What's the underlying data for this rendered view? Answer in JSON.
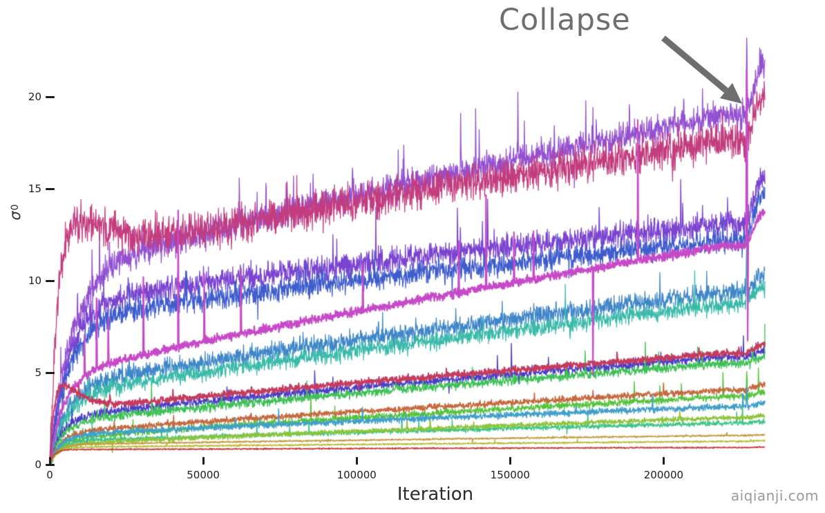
{
  "watermark": "aiqianji.com",
  "annotation": {
    "text": "Collapse",
    "color": "#6e6e6e",
    "arrow_color": "#6e6e6e"
  },
  "axis": {
    "tick_color": "#1c1c1c",
    "label_color": "#2b2b2b"
  },
  "chart_data": {
    "type": "line",
    "title": "",
    "xlabel": "Iteration",
    "ylabel_symbol": "σ",
    "ylabel_sub": "0",
    "xlim": [
      0,
      233000
    ],
    "ylim": [
      0,
      23.5
    ],
    "grid": false,
    "legend": null,
    "x_ticks": {
      "values": [
        0,
        50000,
        100000,
        150000,
        200000
      ],
      "labels": [
        "0",
        "50000",
        "100000",
        "150000",
        "200000"
      ]
    },
    "y_ticks": {
      "values": [
        0,
        5,
        10,
        15,
        20
      ],
      "labels": [
        "0",
        "5",
        "10",
        "15",
        "20"
      ]
    },
    "collapse": {
      "start": 226000,
      "duration": 6500,
      "annotated_at_iteration": 227000
    },
    "series_note": "Each singular-value trace rises from 0, plateaus near 'plateau' by ~iter 20000, grows roughly linearly to 'pre' at iter ~226000, then jumps to 'final' at the collapse.",
    "series": [
      {
        "name": "purple",
        "color": "#9351d2",
        "zorder": 1,
        "tau": 6500,
        "plateau": 10.6,
        "pre": 19.0,
        "final": 21.6,
        "noise": 0.42,
        "spike_prob": 0.02,
        "spike_amp": 4.0,
        "neg_frac": 0.1,
        "collapse_spike": 4.0,
        "lw": 1.3,
        "seed": 11
      },
      {
        "name": "mulberry",
        "color": "#c33d7e",
        "zorder": 4,
        "tau": 2500,
        "plateau": 11.3,
        "pre": 17.6,
        "final": 20.1,
        "noise": 0.55,
        "spike_prob": 0.01,
        "spike_amp": 2.2,
        "neg_frac": 0.45,
        "bump_amp": 2.2,
        "bump_peak": 7000,
        "lw": 1.3,
        "seed": 22
      },
      {
        "name": "blue-violet",
        "color": "#7b44d0",
        "zorder": 2,
        "tau": 6000,
        "plateau": 8.9,
        "pre": 13.1,
        "final": 15.6,
        "noise": 0.38,
        "spike_prob": 0.012,
        "spike_amp": 3.5,
        "neg_frac": 0.15,
        "lw": 1.3,
        "seed": 33
      },
      {
        "name": "royal-blue",
        "color": "#3e5ccc",
        "zorder": 3,
        "tau": 6000,
        "plateau": 8.0,
        "pre": 12.2,
        "final": 14.8,
        "noise": 0.33,
        "spike_prob": 0.01,
        "spike_amp": 2.8,
        "neg_frac": 0.2,
        "collapse_spike": 2.0,
        "lw": 1.3,
        "seed": 44
      },
      {
        "name": "orchid",
        "color": "#c64ac8",
        "zorder": 12,
        "tau": 4500,
        "plateau": 5.1,
        "pre": 11.9,
        "final": 13.7,
        "noise": 0.13,
        "spike_prob": 0.006,
        "spike_amp": 12.0,
        "neg_frac": 0.05,
        "collapse_spike": 11.0,
        "lw": 2.2,
        "seed": 55
      },
      {
        "name": "steel-blue",
        "color": "#3f86c9",
        "zorder": 5,
        "tau": 5000,
        "plateau": 4.4,
        "pre": 9.4,
        "final": 10.3,
        "noise": 0.28,
        "spike_prob": 0.007,
        "spike_amp": 2.6,
        "neg_frac": 0.2,
        "collapse_spike": 2.5,
        "lw": 1.3,
        "seed": 66
      },
      {
        "name": "teal",
        "color": "#3abaa9",
        "zorder": 6,
        "tau": 5000,
        "plateau": 3.9,
        "pre": 8.7,
        "final": 9.7,
        "noise": 0.25,
        "spike_prob": 0.007,
        "spike_amp": 3.2,
        "neg_frac": 0.2,
        "collapse_spike": 3.5,
        "lw": 1.3,
        "seed": 77
      },
      {
        "name": "crimson",
        "color": "#c43b5e",
        "zorder": 13,
        "tau": 1200,
        "plateau": 3.0,
        "pre": 6.05,
        "final": 6.55,
        "noise": 0.1,
        "spike_prob": 0.004,
        "spike_amp": 1.0,
        "neg_frac": 0.2,
        "bump_amp": 1.4,
        "bump_peak": 4000,
        "lw": 2.0,
        "seed": 88
      },
      {
        "name": "indigo",
        "color": "#4a3ccc",
        "zorder": 7,
        "tau": 4000,
        "plateau": 2.7,
        "pre": 5.85,
        "final": 6.15,
        "noise": 0.14,
        "spike_prob": 0.007,
        "spike_amp": 1.8,
        "neg_frac": 0.2,
        "lw": 1.4,
        "seed": 99
      },
      {
        "name": "green",
        "color": "#3fc057",
        "zorder": 8,
        "tau": 4000,
        "plateau": 2.4,
        "pre": 5.5,
        "final": 5.85,
        "noise": 0.13,
        "spike_prob": 0.011,
        "spike_amp": 2.0,
        "neg_frac": 0.15,
        "lw": 1.4,
        "seed": 110
      },
      {
        "name": "sienna",
        "color": "#c5693e",
        "zorder": 14,
        "tau": 3500,
        "plateau": 1.8,
        "pre": 4.05,
        "final": 4.35,
        "noise": 0.09,
        "spike_prob": 0.005,
        "spike_amp": 1.1,
        "neg_frac": 0.2,
        "lw": 1.6,
        "seed": 121
      },
      {
        "name": "lime-green",
        "color": "#55c23c",
        "zorder": 9,
        "tau": 3500,
        "plateau": 1.5,
        "pre": 3.7,
        "final": 3.95,
        "noise": 0.1,
        "spike_prob": 0.008,
        "spike_amp": 1.7,
        "neg_frac": 0.15,
        "collapse_spike": 1.5,
        "lw": 1.4,
        "seed": 132
      },
      {
        "name": "light-blue",
        "color": "#419fc9",
        "zorder": 15,
        "tau": 3500,
        "plateau": 1.65,
        "pre": 3.15,
        "final": 3.35,
        "noise": 0.09,
        "spike_prob": 0.005,
        "spike_amp": 1.1,
        "neg_frac": 0.2,
        "collapse_spike": 1.2,
        "lw": 1.6,
        "seed": 143
      },
      {
        "name": "yellow-green",
        "color": "#8ec43c",
        "zorder": 11,
        "tau": 3000,
        "plateau": 1.15,
        "pre": 2.55,
        "final": 2.65,
        "noise": 0.07,
        "spike_prob": 0.004,
        "spike_amp": 0.8,
        "neg_frac": 0.2,
        "lw": 1.6,
        "seed": 154
      },
      {
        "name": "emerald",
        "color": "#3cc488",
        "zorder": 10,
        "tau": 3000,
        "plateau": 1.3,
        "pre": 2.25,
        "final": 2.35,
        "noise": 0.07,
        "spike_prob": 0.009,
        "spike_amp": 1.8,
        "neg_frac": 0.1,
        "lw": 1.4,
        "seed": 165
      },
      {
        "name": "tan",
        "color": "#c59a3f",
        "zorder": 16,
        "tau": 2500,
        "plateau": 1.1,
        "pre": 1.58,
        "final": 1.62,
        "noise": 0.025,
        "spike_prob": 0.002,
        "spike_amp": 0.3,
        "neg_frac": 0.3,
        "lw": 1.5,
        "seed": 176
      },
      {
        "name": "yellow",
        "color": "#b9bd3a",
        "zorder": 17,
        "tau": 2500,
        "plateau": 0.95,
        "pre": 1.26,
        "final": 1.3,
        "noise": 0.025,
        "spike_prob": 0.002,
        "spike_amp": 0.25,
        "neg_frac": 0.3,
        "lw": 1.5,
        "seed": 187
      },
      {
        "name": "red",
        "color": "#c43c3c",
        "zorder": 18,
        "tau": 1500,
        "plateau": 0.82,
        "pre": 0.93,
        "final": 0.96,
        "noise": 0.02,
        "spike_prob": 0.002,
        "spike_amp": 0.2,
        "neg_frac": 0.3,
        "lw": 1.5,
        "seed": 198
      }
    ]
  }
}
